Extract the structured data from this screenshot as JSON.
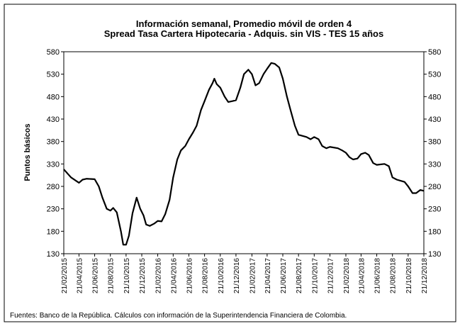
{
  "chart_data": {
    "type": "line",
    "title": "Información semanal, Promedio móvil de orden 4",
    "subtitle": "Spread Tasa Cartera Hipotecaria - Adquis. sin VIS -  TES 15 años",
    "y_label": "Puntos básicos",
    "source": "Fuentes: Banco de la República. Cálculos con información de la Superintendencia Financiera de Colombia.",
    "xlim": [
      "21/02/2015",
      "21/12/2018"
    ],
    "xticks": [
      "21/02/2015",
      "21/04/2015",
      "21/06/2015",
      "21/08/2015",
      "21/10/2015",
      "21/12/2015",
      "21/02/2016",
      "21/04/2016",
      "21/06/2016",
      "21/08/2016",
      "21/10/2016",
      "21/12/2016",
      "21/02/2017",
      "21/04/2017",
      "21/06/2017",
      "21/08/2017",
      "21/10/2017",
      "21/12/2017",
      "21/02/2018",
      "21/04/2018",
      "21/06/2018",
      "21/08/2018",
      "21/10/2018",
      "21/12/2018"
    ],
    "ylim": [
      130,
      580
    ],
    "yticks": [
      130,
      180,
      230,
      280,
      330,
      380,
      430,
      480,
      530,
      580
    ],
    "y2lim": [
      130,
      580
    ],
    "y2ticks": [
      130,
      180,
      230,
      280,
      330,
      380,
      430,
      480,
      530,
      580
    ],
    "x": [
      "21/02/2015",
      "21/03/2015",
      "21/04/2015",
      "05/05/2015",
      "21/05/2015",
      "21/06/2015",
      "07/07/2015",
      "21/07/2015",
      "07/08/2015",
      "21/08/2015",
      "01/09/2015",
      "15/09/2015",
      "01/10/2015",
      "10/10/2015",
      "21/10/2015",
      "01/11/2015",
      "15/11/2015",
      "01/12/2015",
      "15/12/2015",
      "28/12/2015",
      "07/01/2016",
      "21/01/2016",
      "07/02/2016",
      "21/02/2016",
      "07/03/2016",
      "21/03/2016",
      "07/04/2016",
      "21/04/2016",
      "07/05/2016",
      "21/05/2016",
      "07/06/2016",
      "21/06/2016",
      "07/07/2016",
      "21/07/2016",
      "07/08/2016",
      "21/08/2016",
      "07/09/2016",
      "21/09/2016",
      "28/09/2016",
      "07/10/2016",
      "21/10/2016",
      "07/11/2016",
      "21/11/2016",
      "07/12/2016",
      "21/12/2016",
      "07/01/2017",
      "21/01/2017",
      "07/02/2017",
      "21/02/2017",
      "07/03/2017",
      "21/03/2017",
      "07/04/2017",
      "21/04/2017",
      "07/05/2017",
      "21/05/2017",
      "07/06/2017",
      "21/06/2017",
      "07/07/2017",
      "21/07/2017",
      "07/08/2017",
      "21/08/2017",
      "21/09/2017",
      "07/10/2017",
      "21/10/2017",
      "07/11/2017",
      "21/11/2017",
      "07/12/2017",
      "21/12/2017",
      "21/01/2018",
      "07/02/2018",
      "21/02/2018",
      "07/03/2018",
      "21/03/2018",
      "07/04/2018",
      "21/04/2018",
      "07/05/2018",
      "21/05/2018",
      "07/06/2018",
      "21/06/2018",
      "21/07/2018",
      "07/08/2018",
      "21/08/2018",
      "07/09/2018",
      "07/10/2018",
      "21/10/2018",
      "07/11/2018",
      "21/11/2018",
      "07/12/2018",
      "21/12/2018"
    ],
    "series": [
      {
        "color": "#000000",
        "values": [
          318,
          300,
          288,
          295,
          297,
          296,
          280,
          255,
          230,
          226,
          232,
          222,
          180,
          150,
          150,
          170,
          220,
          255,
          230,
          215,
          195,
          192,
          197,
          203,
          202,
          218,
          250,
          300,
          340,
          360,
          370,
          385,
          400,
          415,
          450,
          470,
          495,
          510,
          520,
          508,
          500,
          480,
          468,
          470,
          472,
          500,
          530,
          540,
          530,
          505,
          510,
          530,
          542,
          555,
          553,
          545,
          520,
          480,
          450,
          415,
          395,
          390,
          385,
          390,
          385,
          370,
          365,
          368,
          365,
          360,
          355,
          345,
          340,
          342,
          352,
          355,
          350,
          332,
          328,
          330,
          325,
          300,
          295,
          290,
          280,
          265,
          265,
          272,
          270
        ]
      }
    ]
  }
}
